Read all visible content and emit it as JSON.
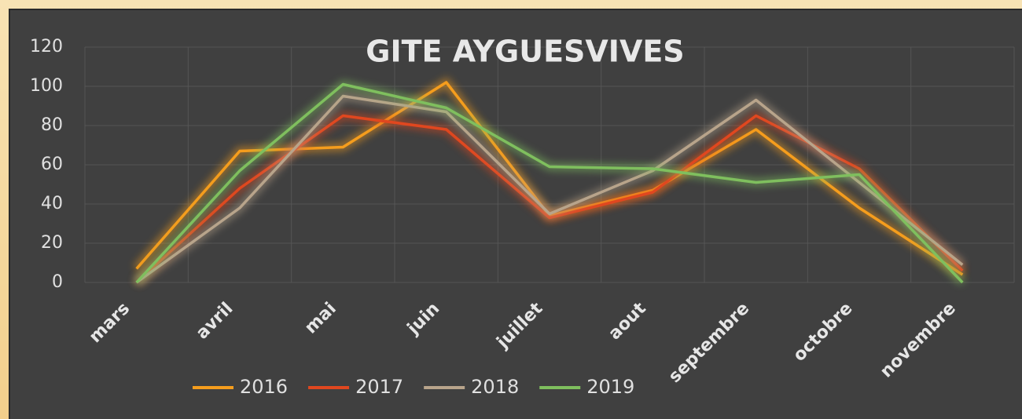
{
  "chart_data": {
    "type": "line",
    "title": "GITE AYGUESVIVES",
    "categories": [
      "mars",
      "avril",
      "mai",
      "juin",
      "juillet",
      "aout",
      "septembre",
      "octobre",
      "novembre"
    ],
    "series": [
      {
        "name": "2016",
        "color": "#f59d1d",
        "values": [
          7,
          67,
          69,
          102,
          34,
          47,
          78,
          38,
          4
        ]
      },
      {
        "name": "2017",
        "color": "#e0471f",
        "values": [
          0,
          48,
          85,
          78,
          33,
          46,
          85,
          58,
          6
        ]
      },
      {
        "name": "2018",
        "color": "#b8a48b",
        "values": [
          0,
          38,
          95,
          87,
          35,
          57,
          93,
          51,
          9
        ]
      },
      {
        "name": "2019",
        "color": "#7fbf5e",
        "values": [
          0,
          57,
          101,
          89,
          59,
          58,
          51,
          55,
          0
        ]
      }
    ],
    "ylim": [
      0,
      120
    ],
    "yticks": [
      0,
      20,
      40,
      60,
      80,
      100,
      120
    ],
    "grid": true,
    "legend": "bottom"
  }
}
